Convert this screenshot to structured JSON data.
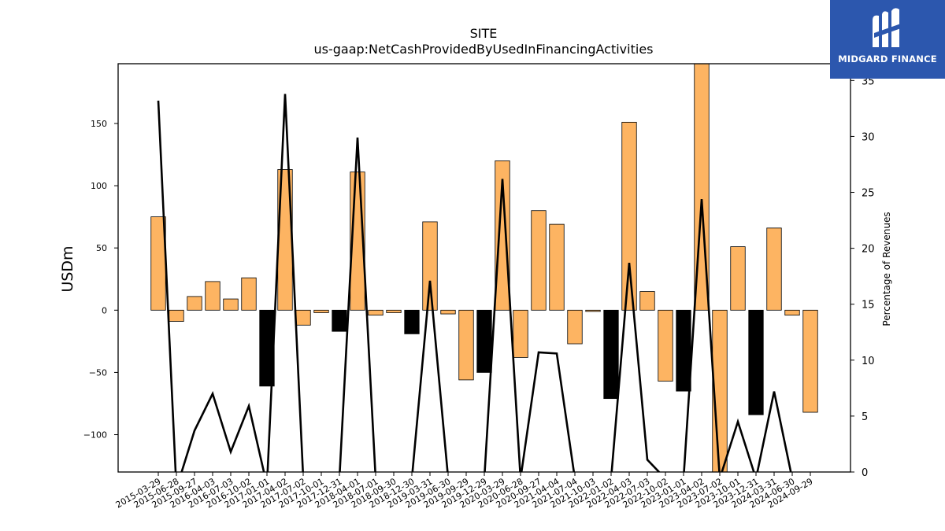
{
  "brand": {
    "name": "MIDGARD FINANCE",
    "logo_icon": "midgard-m-logo",
    "color": "#2c57ae"
  },
  "chart_data": {
    "type": "bar",
    "title": "SITE",
    "subtitle": "us-gaap:NetCashProvidedByUsedInFinancingActivities",
    "ylabel": "USDm",
    "y2label": "Percentage of Revenues",
    "ylim": [
      -130,
      198
    ],
    "y2lim": [
      0,
      36.5
    ],
    "yticks": [
      -100,
      -50,
      0,
      50,
      100,
      150
    ],
    "y2ticks": [
      0,
      5,
      10,
      15,
      20,
      25,
      30,
      35
    ],
    "grid": false,
    "colors": {
      "positive_bar": "#fdb462",
      "negative_bar": "#000000",
      "line": "#000000"
    },
    "categories": [
      "2015-03-29",
      "2015-06-28",
      "2015-09-27",
      "2016-04-03",
      "2016-07-03",
      "2016-10-02",
      "2017-01-01",
      "2017-04-02",
      "2017-07-02",
      "2017-10-01",
      "2017-12-31",
      "2018-04-01",
      "2018-07-01",
      "2018-09-30",
      "2018-12-30",
      "2019-03-31",
      "2019-06-30",
      "2019-09-29",
      "2019-12-29",
      "2020-03-29",
      "2020-06-28",
      "2020-09-27",
      "2021-04-04",
      "2021-07-04",
      "2021-10-03",
      "2022-01-02",
      "2022-04-03",
      "2022-07-03",
      "2022-10-02",
      "2023-01-01",
      "2023-04-02",
      "2023-07-02",
      "2023-10-01",
      "2023-12-31",
      "2024-03-31",
      "2024-06-30",
      "2024-09-29"
    ],
    "series": [
      {
        "type": "bar",
        "axis": "left",
        "values": [
          75,
          -9,
          11,
          23,
          9,
          26,
          -61,
          113,
          -12,
          -2,
          -17,
          111,
          -4,
          -2,
          -19,
          71,
          -3,
          -56,
          -50,
          120,
          -38,
          80,
          69,
          -27,
          -1,
          -71,
          151,
          15,
          -57,
          -65,
          198,
          -130,
          51,
          -84,
          66,
          -4,
          -82
        ],
        "styles": [
          "o",
          "o",
          "o",
          "o",
          "o",
          "o",
          "b",
          "o",
          "o",
          "o",
          "b",
          "o",
          "o",
          "o",
          "b",
          "o",
          "o",
          "o",
          "b",
          "o",
          "o",
          "o",
          "o",
          "o",
          "o",
          "b",
          "o",
          "o",
          "o",
          "b",
          "o",
          "o",
          "o",
          "b",
          "o",
          "o",
          "o"
        ]
      },
      {
        "type": "line",
        "axis": "right",
        "values": [
          33.2,
          -1.5,
          3.7,
          7.0,
          1.8,
          5.9,
          -1.2,
          33.8,
          -0.5,
          -0.6,
          -0.6,
          29.9,
          -0.6,
          -0.5,
          -0.6,
          17.1,
          -0.5,
          -0.6,
          -0.6,
          26.2,
          -0.6,
          10.7,
          10.6,
          -0.6,
          -0.5,
          -0.6,
          18.7,
          1.1,
          -0.6,
          -0.6,
          24.4,
          -0.6,
          4.5,
          -0.6,
          7.2,
          -0.6,
          null
        ]
      }
    ]
  }
}
